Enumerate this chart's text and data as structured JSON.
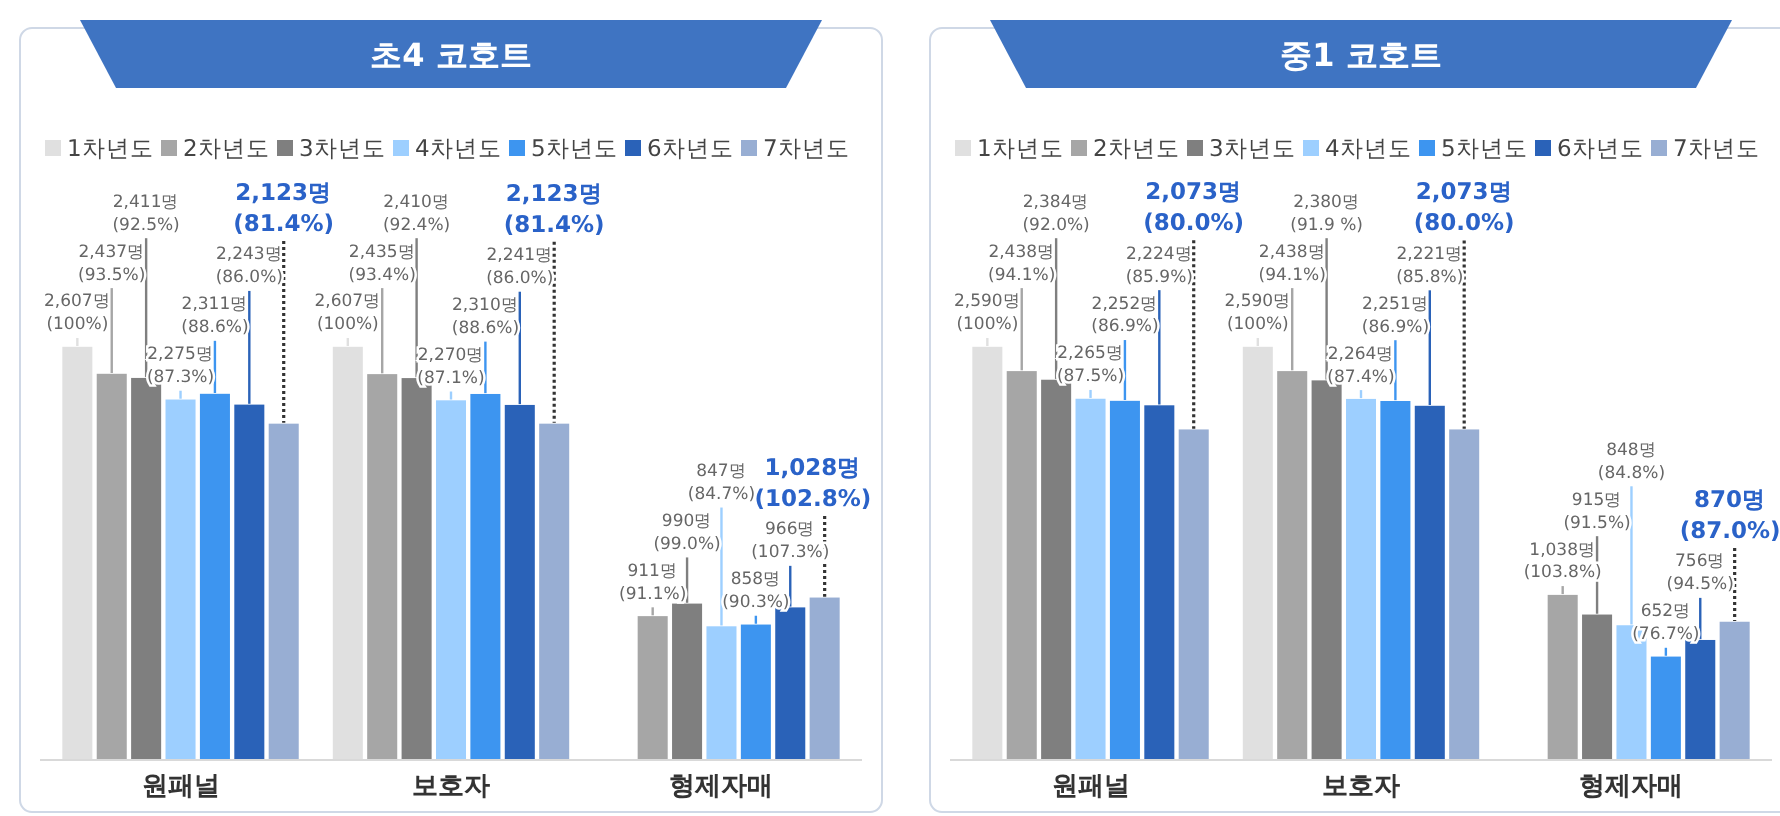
{
  "chart_data": [
    {
      "type": "bar",
      "title": "초4 코호트",
      "categories": [
        "원패널",
        "보호자",
        "형제자매"
      ],
      "legend": "top",
      "series": [
        {
          "name": "1차년도",
          "color": "#e0e0e0",
          "values": [
            2607,
            2607,
            null
          ],
          "value_labels": [
            "2,607명\n(100%)",
            "2,607명\n(100%)",
            null
          ]
        },
        {
          "name": "2차년도",
          "color": "#a6a6a6",
          "values": [
            2437,
            2435,
            911
          ],
          "value_labels": [
            "2,437명\n(93.5%)",
            "2,435명\n(93.4%)",
            "911명\n(91.1%)"
          ]
        },
        {
          "name": "3차년도",
          "color": "#7f7f7f",
          "values": [
            2411,
            2410,
            990
          ],
          "value_labels": [
            "2,411명\n(92.5%)",
            "2,410명\n(92.4%)",
            "990명\n(99.0%)"
          ]
        },
        {
          "name": "4차년도",
          "color": "#9dcfff",
          "values": [
            2275,
            2270,
            847
          ],
          "value_labels": [
            "2,275명\n(87.3%)",
            "2,270명\n(87.1%)",
            "847명\n(84.7%)"
          ]
        },
        {
          "name": "5차년도",
          "color": "#3d95f0",
          "values": [
            2311,
            2310,
            858
          ],
          "value_labels": [
            "2,311명\n(88.6%)",
            "2,310명\n(88.6%)",
            "858명\n(90.3%)"
          ]
        },
        {
          "name": "6차년도",
          "color": "#2a62b8",
          "values": [
            2243,
            2241,
            966
          ],
          "value_labels": [
            "2,243명\n(86.0%)",
            "2,241명\n(86.0%)",
            "966명\n(107.3%)"
          ]
        },
        {
          "name": "7차년도",
          "color": "#98aed3",
          "values": [
            2123,
            2123,
            1028
          ],
          "value_labels": [
            "2,123명\n(81.4%)",
            "2,123명\n(81.4%)",
            "1,028명\n(102.8%)"
          ]
        }
      ]
    },
    {
      "type": "bar",
      "title": "중1 코호트",
      "categories": [
        "원패널",
        "보호자",
        "형제자매"
      ],
      "legend": "top",
      "series": [
        {
          "name": "1차년도",
          "color": "#e0e0e0",
          "values": [
            2590,
            2590,
            null
          ],
          "value_labels": [
            "2,590명\n(100%)",
            "2,590명\n(100%)",
            null
          ]
        },
        {
          "name": "2차년도",
          "color": "#a6a6a6",
          "values": [
            2438,
            2438,
            1038
          ],
          "value_labels": [
            "2,438명\n(94.1%)",
            "2,438명\n(94.1%)",
            "1,038명\n(103.8%)"
          ]
        },
        {
          "name": "3차년도",
          "color": "#7f7f7f",
          "values": [
            2384,
            2380,
            915
          ],
          "value_labels": [
            "2,384명\n(92.0%)",
            "2,380명\n(91.9 %)",
            "915명\n(91.5%)"
          ]
        },
        {
          "name": "4차년도",
          "color": "#9dcfff",
          "values": [
            2265,
            2264,
            848
          ],
          "value_labels": [
            "2,265명\n(87.5%)",
            "2,264명\n(87.4%)",
            "848명\n(84.8%)"
          ]
        },
        {
          "name": "5차년도",
          "color": "#3d95f0",
          "values": [
            2252,
            2251,
            652
          ],
          "value_labels": [
            "2,252명\n(86.9%)",
            "2,251명\n(86.9%)",
            "652명\n(76.7%)"
          ]
        },
        {
          "name": "6차년도",
          "color": "#2a62b8",
          "values": [
            2224,
            2221,
            756
          ],
          "value_labels": [
            "2,224명\n(85.9%)",
            "2,221명\n(85.8%)",
            "756명\n(94.5%)"
          ]
        },
        {
          "name": "7차년도",
          "color": "#98aed3",
          "values": [
            2073,
            2073,
            870
          ],
          "value_labels": [
            "2,073명\n(80.0%)",
            "2,073명\n(80.0%)",
            "870명\n(87.0%)"
          ]
        }
      ]
    }
  ]
}
